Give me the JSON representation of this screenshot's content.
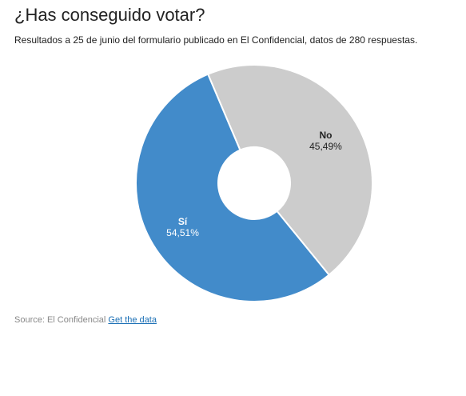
{
  "title": "¿Has conseguido votar?",
  "subtitle": "Resultados a 25 de junio del formulario publicado en El Confidencial, datos de 280 respuestas.",
  "footer": {
    "source_label": "Source: El Confidencial",
    "link_label": "Get the data"
  },
  "chart_data": {
    "type": "pie",
    "donut": true,
    "title": "¿Has conseguido votar?",
    "subtitle": "Resultados a 25 de junio del formulario publicado en El Confidencial, datos de 280 respuestas.",
    "categories": [
      "Sí",
      "No"
    ],
    "values": [
      54.51,
      45.49
    ],
    "value_labels": [
      "54,51%",
      "45,49%"
    ],
    "colors": [
      "#428bca",
      "#cccccc"
    ],
    "legend": "none",
    "start_angle_deg": -23
  }
}
